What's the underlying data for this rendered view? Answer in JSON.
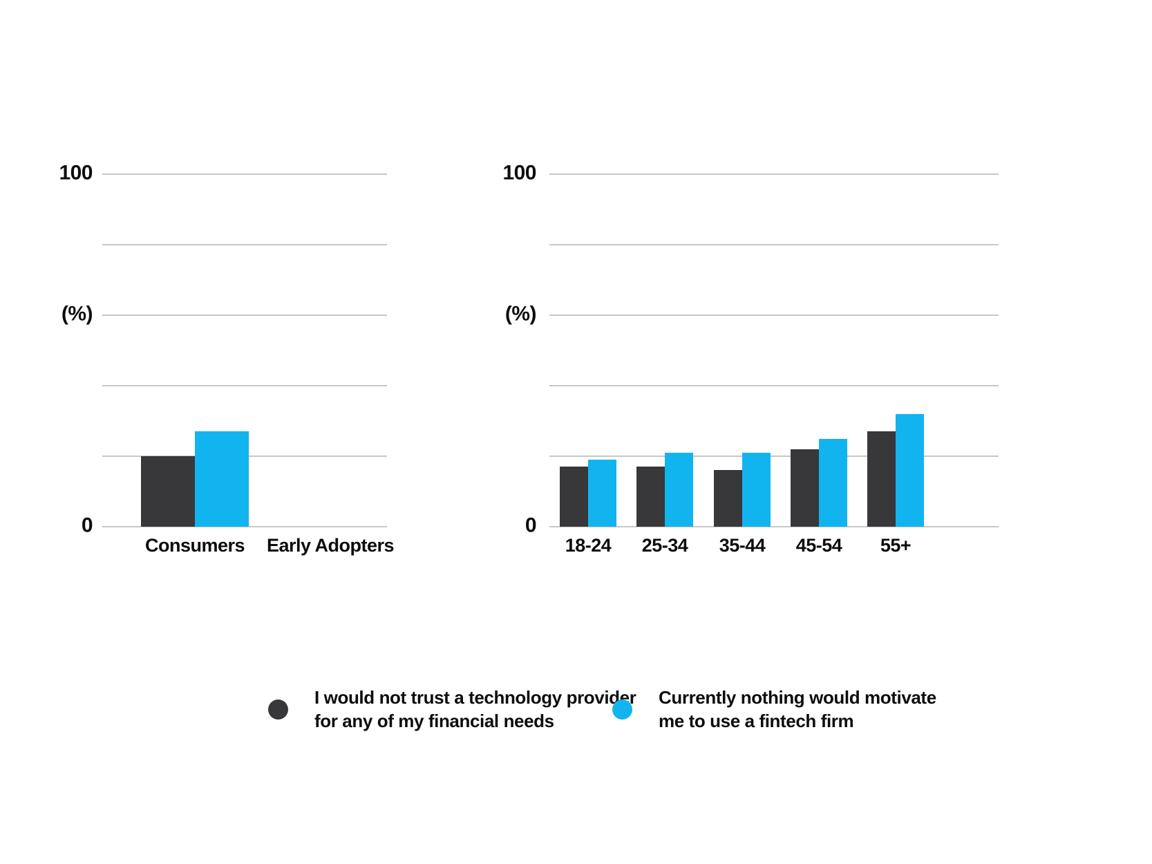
{
  "page": {
    "background": "#ffffff"
  },
  "colors": {
    "series_dark": "#38383a",
    "series_blue": "#12b4f0",
    "gridline": "#c7c7c7",
    "text": "#0d0d0d"
  },
  "y_axis": {
    "labels": [
      {
        "text": "100",
        "value": 100
      },
      {
        "text": "(%)",
        "value": 60
      },
      {
        "text": "0",
        "value": 0
      }
    ]
  },
  "chart_data": [
    {
      "type": "bar",
      "title": "",
      "categories": [
        "Consumers",
        "Early Adopters"
      ],
      "series": [
        {
          "name": "I would not trust a technology provider for any of my financial needs",
          "color": "#38383a",
          "values": [
            20,
            0
          ]
        },
        {
          "name": "Currently nothing would motivate me to use a fintech firm",
          "color": "#12b4f0",
          "values": [
            27,
            0
          ]
        }
      ],
      "xlabel": "",
      "ylabel": "(%)",
      "ylim": [
        0,
        100
      ],
      "gridline_step": 20,
      "grid": true,
      "legend_position": "bottom"
    },
    {
      "type": "bar",
      "title": "",
      "categories": [
        "18-24",
        "25-34",
        "35-44",
        "45-54",
        "55+"
      ],
      "series": [
        {
          "name": "I would not trust a technology provider for any of my financial needs",
          "color": "#38383a",
          "values": [
            17,
            17,
            16,
            22,
            27
          ]
        },
        {
          "name": "Currently nothing would motivate me to use a fintech firm",
          "color": "#12b4f0",
          "values": [
            19,
            21,
            21,
            25,
            32
          ]
        }
      ],
      "xlabel": "",
      "ylabel": "(%)",
      "ylim": [
        0,
        100
      ],
      "gridline_step": 20,
      "grid": true,
      "legend_position": "bottom"
    }
  ],
  "legend": {
    "items": [
      {
        "color": "#38383a",
        "lines": [
          "I would not trust a technology provider",
          "for any of my financial needs"
        ]
      },
      {
        "color": "#12b4f0",
        "lines": [
          "Currently nothing would motivate",
          "me to use a fintech firm"
        ]
      }
    ]
  }
}
